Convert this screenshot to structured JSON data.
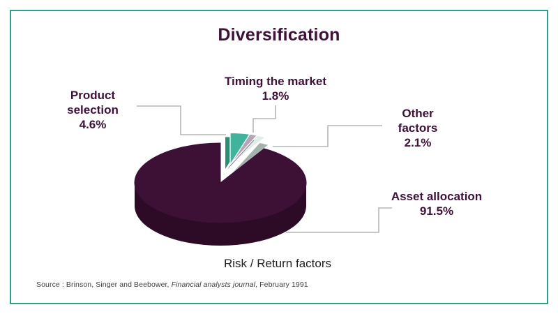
{
  "title": "Diversification",
  "chart_data": {
    "type": "pie",
    "style": "3d-exploded",
    "title": "Diversification",
    "caption": "Risk / Return factors",
    "unit": "%",
    "start_angle_deg": 0,
    "direction": "clockwise",
    "legend_position": "callouts-with-leader-lines",
    "slices": [
      {
        "label": "Product selection",
        "value": 4.6,
        "display": "4.6%",
        "color": "#3fb39b",
        "side_color": "#2d8c74",
        "exploded": true
      },
      {
        "label": "Timing the market",
        "value": 1.8,
        "display": "1.8%",
        "color": "#b5a3b8",
        "side_color": "#8f7c95",
        "exploded": true
      },
      {
        "label": "Other factors",
        "value": 2.1,
        "display": "2.1%",
        "color": "#dfeee8",
        "side_color": "#a3b2ac",
        "exploded": true
      },
      {
        "label": "Asset allocation",
        "value": 91.5,
        "display": "91.5%",
        "color": "#3d1036",
        "side_color": "#2d0b27",
        "exploded": false
      }
    ],
    "source": {
      "prefix": "Source : Brinson, Singer and Beebower, ",
      "journal": "Financial analysts journal",
      "suffix": ", February 1991"
    }
  },
  "colors": {
    "background": "#ffffff",
    "border": "#2aa18c",
    "title_text": "#3e1137",
    "label_text": "#3e1137",
    "caption_text": "#1f1f1f",
    "source_text": "#3f3f3f",
    "leader_line": "#a6a6a6"
  }
}
